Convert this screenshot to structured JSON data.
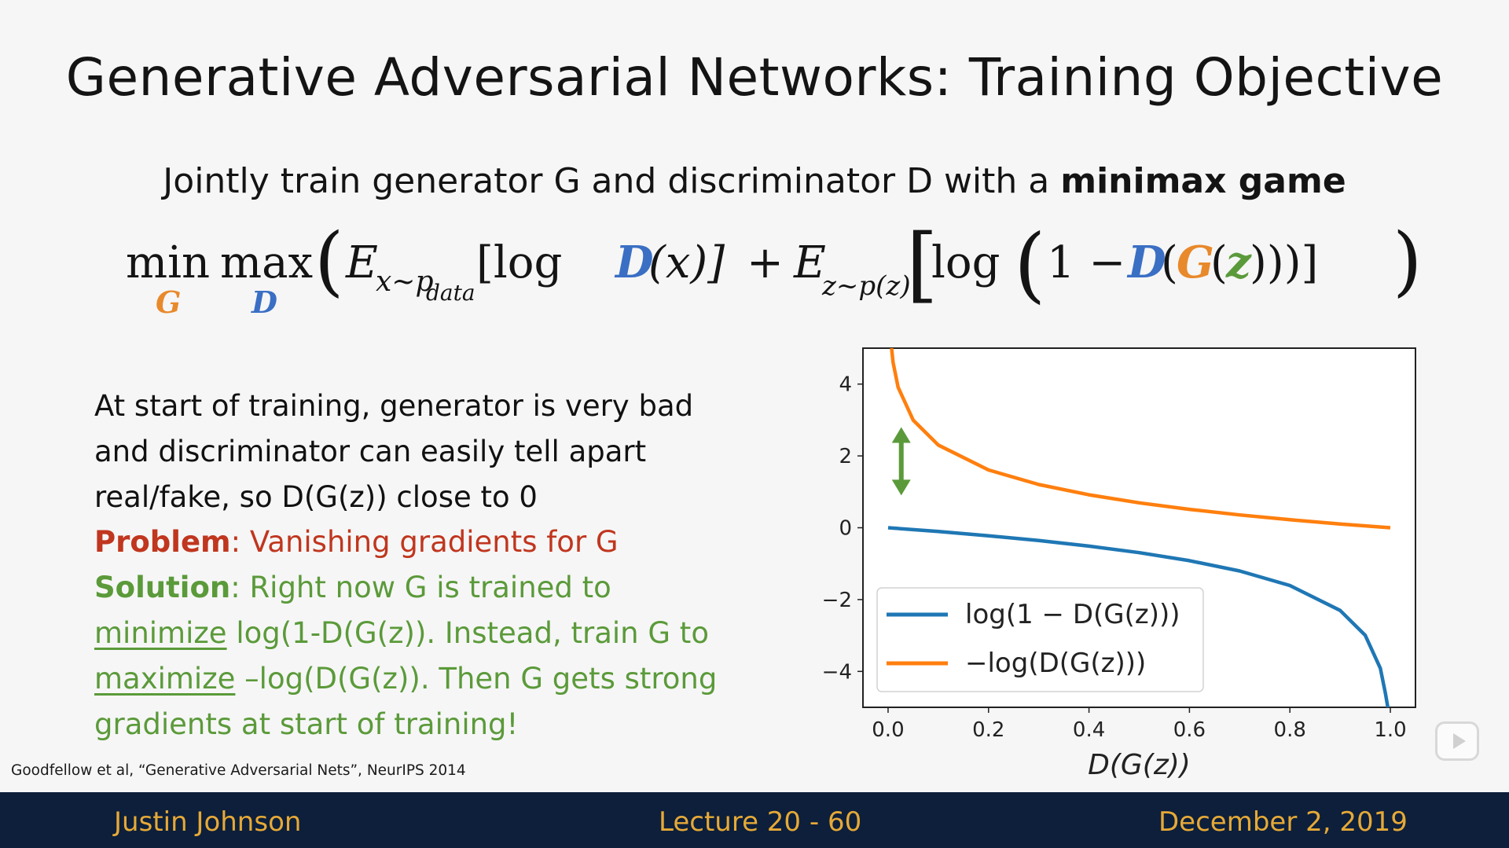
{
  "slide": {
    "title": "Generative Adversarial Networks: Training Objective",
    "subtitle_prefix": "Jointly train generator G and discriminator D with a ",
    "subtitle_bold": "minimax game",
    "formula": {
      "min": "min",
      "min_sub": "G",
      "max": "max",
      "max_sub": "D",
      "open_paren": "(",
      "e1": "E",
      "e1_sub": "x~p",
      "e1_subsub": "data",
      "log1": "[log ",
      "D1": "D",
      "x_term": "(x)]",
      "plus": "+",
      "e2": "E",
      "e2_sub": "z~p(z)",
      "bracket_open": "[",
      "log2": "log",
      "paren_open": "(",
      "one_minus": "1 −",
      "D2": "D",
      "G": "G",
      "z": "z",
      "closing": ")))]",
      "close_paren": ")"
    },
    "bullets": {
      "line1": "At start of training, generator is very bad",
      "line2": "and discriminator can easily tell apart",
      "line3": "real/fake, so D(G(z)) close to 0",
      "problem_label": "Problem",
      "problem_text": ": Vanishing gradients for G",
      "solution_label": "Solution",
      "solution_text": ": Right now G is trained to",
      "minimize_word": "minimize",
      "line6_rest": " log(1-D(G(z)). Instead, train G to",
      "maximize_word": "maximize",
      "line7_rest": " –log(D(G(z)). Then G gets strong",
      "line8": "gradients at start of training!"
    },
    "citation": "Goodfellow et al, “Generative Adversarial Nets”, NeurIPS 2014"
  },
  "footer": {
    "left": "Justin Johnson",
    "center": "Lecture 20 - 60",
    "right": "December 2, 2019"
  },
  "colors": {
    "G": "#e8892c",
    "D": "#3a6fc4",
    "z": "#5b9a3a",
    "problem": "#c0361e",
    "solution": "#5b9a3a",
    "footer_bg": "#0d1f3a",
    "footer_text": "#e6a937",
    "series_blue": "#1f77b4",
    "series_orange": "#ff7f0e",
    "arrow": "#5b9a3a"
  },
  "chart_data": {
    "type": "line",
    "xlabel": "D(G(z))",
    "ylabel": "",
    "xlim": [
      -0.05,
      1.05
    ],
    "ylim": [
      -5,
      5
    ],
    "xticks": [
      0.0,
      0.2,
      0.4,
      0.6,
      0.8,
      1.0
    ],
    "xtick_labels": [
      "0.0",
      "0.2",
      "0.4",
      "0.6",
      "0.8",
      "1.0"
    ],
    "yticks": [
      -4,
      -2,
      0,
      2,
      4
    ],
    "ytick_labels": [
      "−4",
      "−2",
      "0",
      "2",
      "4"
    ],
    "grid": false,
    "legend_position": "lower-left",
    "series": [
      {
        "name": "log(1 − D(G(z)))",
        "x": [
          0.0,
          0.1,
          0.2,
          0.3,
          0.4,
          0.5,
          0.6,
          0.7,
          0.8,
          0.9,
          0.95,
          0.98,
          0.99,
          0.995
        ],
        "y": [
          0.0,
          -0.105,
          -0.223,
          -0.357,
          -0.511,
          -0.693,
          -0.916,
          -1.204,
          -1.609,
          -2.303,
          -2.996,
          -3.912,
          -4.605,
          -5.0
        ]
      },
      {
        "name": "−log(D(G(z)))",
        "x": [
          0.007,
          0.01,
          0.02,
          0.05,
          0.1,
          0.2,
          0.3,
          0.4,
          0.5,
          0.6,
          0.7,
          0.8,
          0.9,
          1.0
        ],
        "y": [
          5.0,
          4.605,
          3.912,
          2.996,
          2.303,
          1.609,
          1.204,
          0.916,
          0.693,
          0.511,
          0.357,
          0.223,
          0.105,
          0.0
        ]
      }
    ],
    "annotation": "double-headed arrow"
  }
}
